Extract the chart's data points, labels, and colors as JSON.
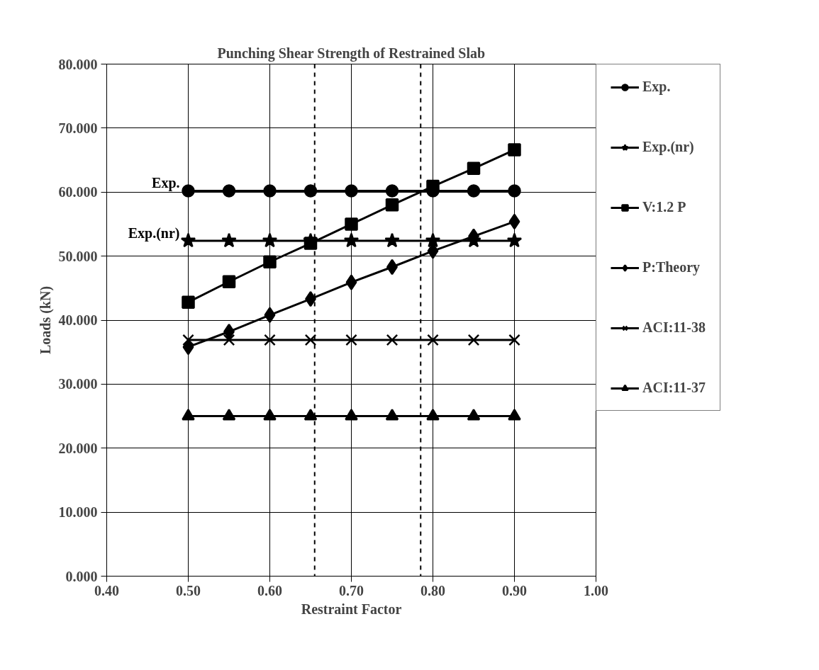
{
  "chart_data": {
    "type": "line",
    "title": "Punching Shear Strength of Restrained Slab",
    "xlabel": "Restraint Factor",
    "ylabel": "Loads (kN)",
    "x": [
      0.5,
      0.55,
      0.6,
      0.65,
      0.7,
      0.75,
      0.8,
      0.85,
      0.9
    ],
    "series": [
      {
        "name": "Exp.",
        "color": "#000000",
        "marker": "circle",
        "values": [
          60.2,
          60.2,
          60.2,
          60.2,
          60.2,
          60.2,
          60.2,
          60.2,
          60.2
        ]
      },
      {
        "name": "Exp.(nr)",
        "color": "#000000",
        "marker": "star",
        "values": [
          52.4,
          52.4,
          52.4,
          52.4,
          52.4,
          52.4,
          52.4,
          52.4,
          52.4
        ]
      },
      {
        "name": "V:1.2 P",
        "color": "#000000",
        "marker": "square",
        "values": [
          42.8,
          46.0,
          49.1,
          52.0,
          55.0,
          58.0,
          60.9,
          63.7,
          66.6
        ]
      },
      {
        "name": "P:Theory",
        "color": "#000000",
        "marker": "diamond",
        "values": [
          35.8,
          38.2,
          40.8,
          43.3,
          45.9,
          48.3,
          50.8,
          53.1,
          55.4
        ]
      },
      {
        "name": "ACI:11-38",
        "color": "#000000",
        "marker": "cross",
        "values": [
          36.9,
          36.9,
          36.9,
          36.9,
          36.9,
          36.9,
          36.9,
          36.9,
          36.9
        ]
      },
      {
        "name": "ACI:11-37",
        "color": "#000000",
        "marker": "triangle",
        "values": [
          25.0,
          25.0,
          25.0,
          25.0,
          25.0,
          25.0,
          25.0,
          25.0,
          25.0
        ]
      }
    ],
    "xlim": [
      0.4,
      1.0
    ],
    "xticks": [
      {
        "value": 0.4,
        "label": "0.40"
      },
      {
        "value": 0.5,
        "label": "0.50"
      },
      {
        "value": 0.6,
        "label": "0.60"
      },
      {
        "value": 0.7,
        "label": "0.70"
      },
      {
        "value": 0.8,
        "label": "0.80"
      },
      {
        "value": 0.9,
        "label": "0.90"
      },
      {
        "value": 1.0,
        "label": "1.00"
      }
    ],
    "ylim": [
      0,
      80
    ],
    "yticks": [
      {
        "value": 0,
        "label": "0.000"
      },
      {
        "value": 10,
        "label": "10.000"
      },
      {
        "value": 20,
        "label": "20.000"
      },
      {
        "value": 30,
        "label": "30.000"
      },
      {
        "value": 40,
        "label": "40.000"
      },
      {
        "value": 50,
        "label": "50.000"
      },
      {
        "value": 60,
        "label": "60.000"
      },
      {
        "value": 70,
        "label": "70.000"
      },
      {
        "value": 80,
        "label": "80.000"
      }
    ],
    "annotations": [
      {
        "text": "Exp.",
        "x": 0.5,
        "y": 60.2
      },
      {
        "text": "Exp.(nr)",
        "x": 0.5,
        "y": 52.4
      }
    ],
    "ref_lines": [
      {
        "axis": "x",
        "value": 0.655,
        "line_style": "dashed"
      },
      {
        "axis": "x",
        "value": 0.785,
        "line_style": "dashed"
      }
    ],
    "grid": true,
    "legend": "right",
    "line_style": "solid"
  }
}
